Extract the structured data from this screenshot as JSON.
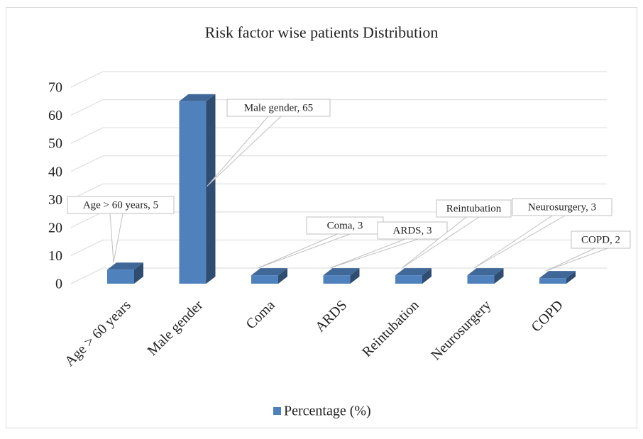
{
  "chart_data": {
    "type": "bar3d",
    "title": "Risk factor wise patients Distribution",
    "categories": [
      "Age > 60 years",
      "Male gender",
      "Coma",
      "ARDS",
      "Reintubation",
      "Neurosurgery",
      "COPD"
    ],
    "series": [
      {
        "name": "Percentage (%)",
        "color": "#4f81bd",
        "values": [
          5,
          65,
          3,
          3,
          3,
          3,
          2
        ],
        "value_labels": [
          "Age > 60 years, 5",
          "Male gender, 65",
          "Coma, 3",
          "ARDS, 3",
          "Reintubation",
          "Neurosurgery, 3",
          "COPD, 2"
        ]
      }
    ],
    "ylim": [
      0,
      70
    ],
    "yticks": [
      0,
      10,
      20,
      30,
      40,
      50,
      60,
      70
    ],
    "grid": true,
    "legend": "bottom"
  }
}
